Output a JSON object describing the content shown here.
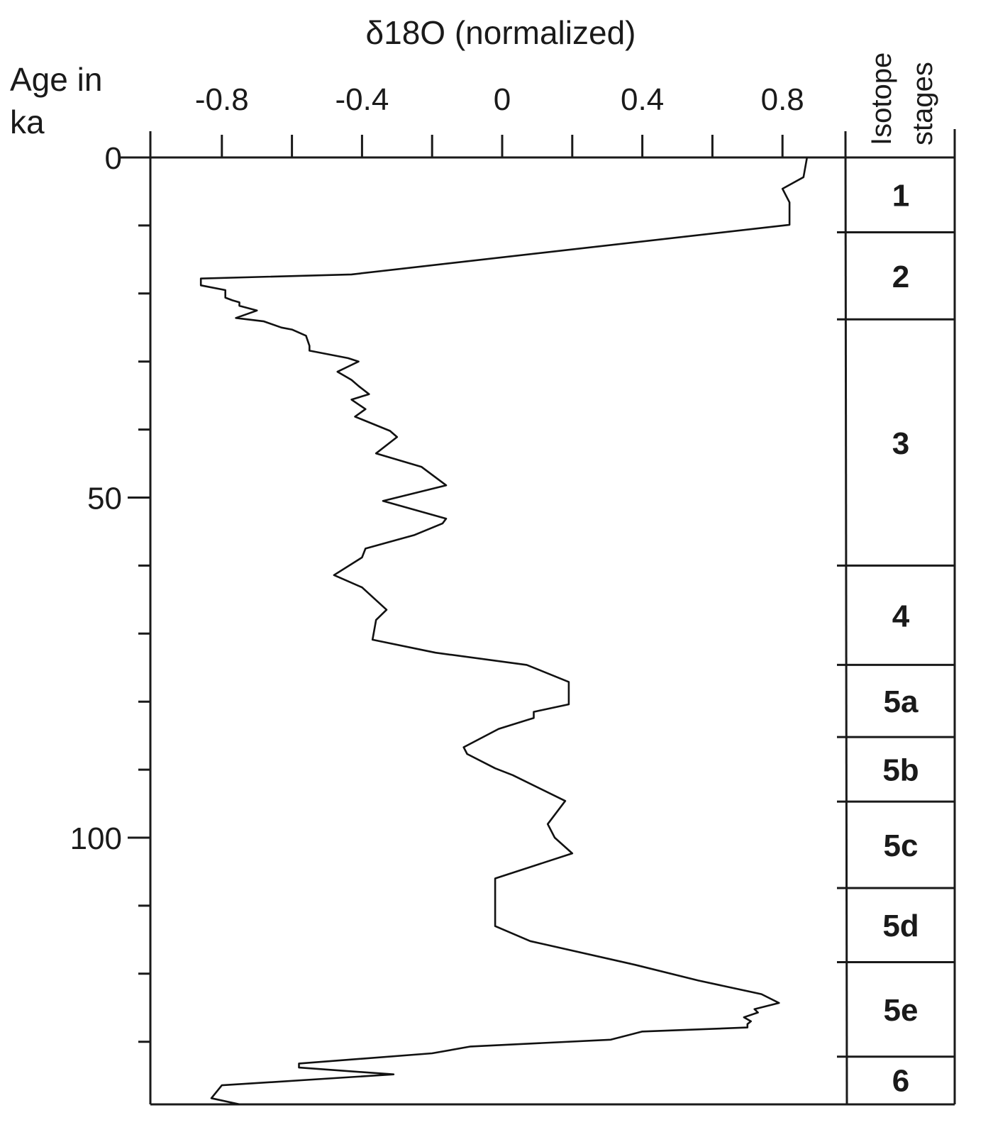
{
  "chart_data": {
    "type": "line",
    "orientation": "vertical-depth",
    "title": "δ18O (normalized)",
    "xlabel": "δ18O (normalized)",
    "ylabel": "Age in ka",
    "ylabel_lines": [
      "Age in",
      "ka"
    ],
    "xlim": [
      -1.0,
      1.0
    ],
    "ylim": [
      0,
      139
    ],
    "y_inverted": true,
    "grid": false,
    "x_ticks": [
      -0.8,
      -0.6,
      -0.4,
      -0.2,
      0,
      0.2,
      0.4,
      0.6,
      0.8
    ],
    "x_tick_labels": [
      {
        "value": -0.8,
        "label": "-0.8"
      },
      {
        "value": -0.4,
        "label": "-0.4"
      },
      {
        "value": 0,
        "label": "0"
      },
      {
        "value": 0.4,
        "label": "0.4"
      },
      {
        "value": 0.8,
        "label": "0.8"
      }
    ],
    "y_ticks": [
      0,
      10,
      20,
      30,
      40,
      50,
      60,
      70,
      80,
      90,
      100,
      110,
      120,
      130
    ],
    "y_tick_labels": [
      {
        "value": 0,
        "label": "0"
      },
      {
        "value": 50,
        "label": "50"
      },
      {
        "value": 100,
        "label": "100"
      }
    ],
    "series": [
      {
        "name": "δ18O",
        "age_ka": [
          0,
          2.9,
          4.6,
          6.6,
          9.9,
          17.2,
          17.8,
          18.8,
          19.5,
          20.6,
          21.0,
          21.3,
          21.8,
          22.5,
          23.6,
          24.1,
          25.0,
          25.3,
          26.2,
          27.7,
          28.4,
          29.5,
          30.0,
          30.5,
          31.5,
          32.7,
          33.6,
          34.8,
          35.6,
          37.0,
          38.1,
          40.2,
          41.1,
          43.5,
          45.5,
          48.2,
          50.5,
          53.1,
          53.8,
          55.5,
          57.5,
          58.8,
          61.4,
          63.2,
          66.5,
          68.0,
          70.9,
          72.6,
          72.8,
          74.6,
          77.1,
          80.4,
          81.5,
          82.4,
          84.0,
          86.7,
          87.7,
          89.8,
          90.8,
          94.6,
          98.0,
          100.0,
          102.3,
          106.0,
          113.0,
          115.2,
          118.7,
          121.0,
          123.0,
          124.3,
          125.2,
          125.7,
          126.4,
          127.0,
          127.4,
          127.9,
          128.5,
          129.7,
          130.7,
          131.7,
          133.2,
          133.8,
          134.8,
          136.4,
          138.3,
          139.2
        ],
        "values": [
          0.87,
          0.86,
          0.8,
          0.82,
          0.82,
          -0.43,
          -0.86,
          -0.86,
          -0.79,
          -0.79,
          -0.77,
          -0.75,
          -0.75,
          -0.7,
          -0.76,
          -0.68,
          -0.63,
          -0.6,
          -0.56,
          -0.55,
          -0.55,
          -0.44,
          -0.41,
          -0.43,
          -0.47,
          -0.43,
          -0.41,
          -0.38,
          -0.43,
          -0.39,
          -0.42,
          -0.32,
          -0.3,
          -0.36,
          -0.23,
          -0.16,
          -0.34,
          -0.16,
          -0.17,
          -0.25,
          -0.39,
          -0.4,
          -0.48,
          -0.4,
          -0.33,
          -0.36,
          -0.37,
          -0.21,
          -0.19,
          0.07,
          0.19,
          0.19,
          0.09,
          0.09,
          -0.01,
          -0.11,
          -0.1,
          -0.02,
          0.03,
          0.18,
          0.13,
          0.15,
          0.2,
          -0.02,
          -0.02,
          0.08,
          0.38,
          0.56,
          0.74,
          0.79,
          0.72,
          0.73,
          0.69,
          0.71,
          0.7,
          0.7,
          0.4,
          0.31,
          -0.09,
          -0.2,
          -0.58,
          -0.58,
          -0.31,
          -0.8,
          -0.83,
          -0.75
        ]
      }
    ],
    "stage_column": {
      "header": [
        "Isotope",
        "stages"
      ],
      "stages": [
        {
          "label": "1",
          "start_ka": 0,
          "end_ka": 11
        },
        {
          "label": "2",
          "start_ka": 11,
          "end_ka": 23.8
        },
        {
          "label": "3",
          "start_ka": 23.8,
          "end_ka": 60
        },
        {
          "label": "4",
          "start_ka": 60,
          "end_ka": 74.6
        },
        {
          "label": "5a",
          "start_ka": 74.6,
          "end_ka": 85.2
        },
        {
          "label": "5b",
          "start_ka": 85.2,
          "end_ka": 94.7
        },
        {
          "label": "5c",
          "start_ka": 94.7,
          "end_ka": 107.4
        },
        {
          "label": "5d",
          "start_ka": 107.4,
          "end_ka": 118.3
        },
        {
          "label": "5e",
          "start_ka": 118.3,
          "end_ka": 132.2
        },
        {
          "label": "6",
          "start_ka": 132.2,
          "end_ka": 139
        }
      ]
    }
  }
}
